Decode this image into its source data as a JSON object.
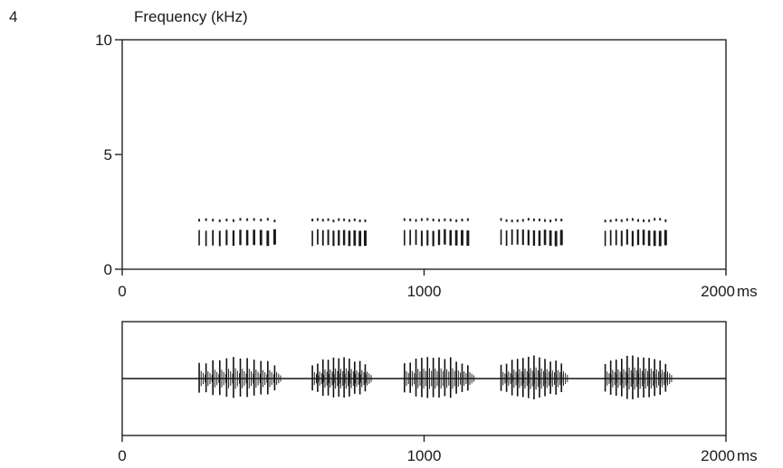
{
  "figure_number": "4",
  "chart_data": [
    {
      "type": "spectrogram",
      "ylabel": "Frequency (kHz)",
      "xunit": "ms",
      "xlim": [
        0,
        2000
      ],
      "ylim": [
        0,
        10
      ],
      "xticks": [
        {
          "value": 0,
          "label": "0"
        },
        {
          "value": 1000,
          "label": "1000"
        },
        {
          "value": 2000,
          "label": "2000"
        }
      ],
      "yticks": [
        {
          "value": 0,
          "label": "0"
        },
        {
          "value": 5,
          "label": "5"
        },
        {
          "value": 10,
          "label": "10"
        }
      ],
      "pulse_trains": [
        {
          "start_ms": 255,
          "end_ms": 505,
          "freq_low_khz": 1.0,
          "freq_high_khz": 2.2,
          "pulses": 12
        },
        {
          "start_ms": 630,
          "end_ms": 805,
          "freq_low_khz": 1.0,
          "freq_high_khz": 2.2,
          "pulses": 11
        },
        {
          "start_ms": 935,
          "end_ms": 1145,
          "freq_low_khz": 1.0,
          "freq_high_khz": 2.2,
          "pulses": 12
        },
        {
          "start_ms": 1255,
          "end_ms": 1455,
          "freq_low_khz": 1.0,
          "freq_high_khz": 2.2,
          "pulses": 12
        },
        {
          "start_ms": 1600,
          "end_ms": 1800,
          "freq_low_khz": 1.0,
          "freq_high_khz": 2.2,
          "pulses": 12
        }
      ]
    },
    {
      "type": "waveform",
      "xunit": "ms",
      "xlim": [
        0,
        2000
      ],
      "xticks": [
        {
          "value": 0,
          "label": "0"
        },
        {
          "value": 1000,
          "label": "1000"
        },
        {
          "value": 2000,
          "label": "2000"
        }
      ],
      "pulse_trains": [
        {
          "start_ms": 255,
          "end_ms": 505,
          "pulses": 12
        },
        {
          "start_ms": 630,
          "end_ms": 805,
          "pulses": 11
        },
        {
          "start_ms": 935,
          "end_ms": 1145,
          "pulses": 12
        },
        {
          "start_ms": 1255,
          "end_ms": 1455,
          "pulses": 12
        },
        {
          "start_ms": 1600,
          "end_ms": 1800,
          "pulses": 12
        }
      ]
    }
  ]
}
